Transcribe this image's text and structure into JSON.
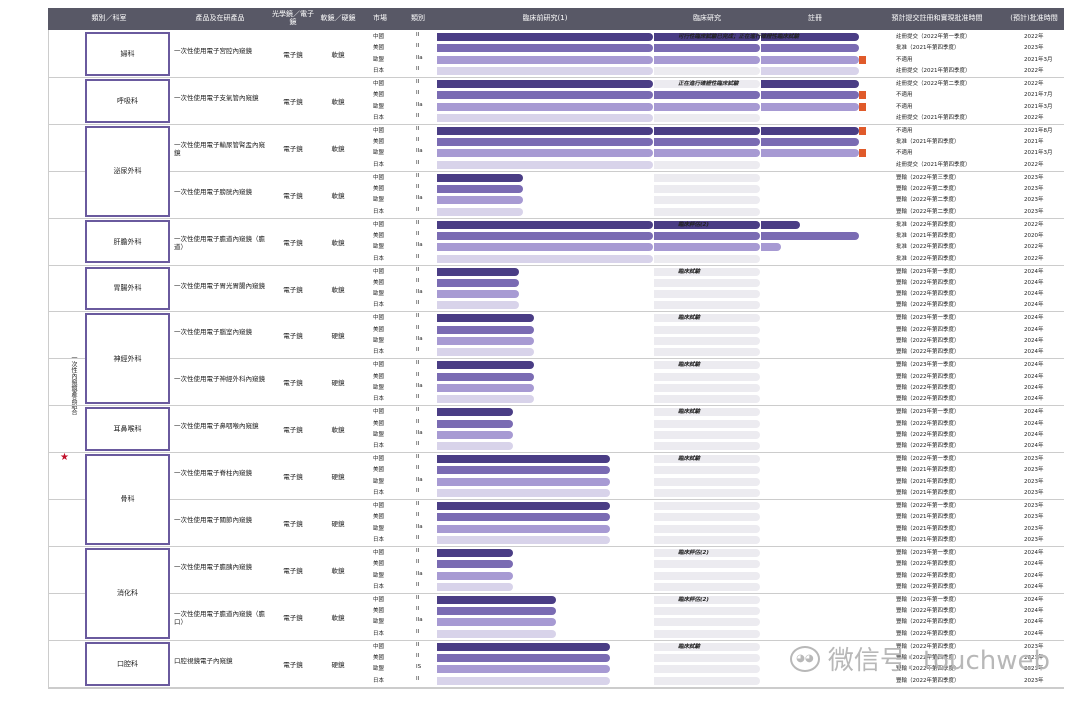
{
  "header": {
    "cols": [
      "類別／科室",
      "產品及在研產品",
      "光學鏡／電子鏡",
      "軟鏡／硬鏡",
      "市場",
      "類別",
      "臨床前研究(1)",
      "臨床研究",
      "註冊",
      "預計提交註冊和實現批准時間",
      "(預計)批准時間"
    ]
  },
  "side_label": "一次性內窺鏡產品組合",
  "stages": [
    "中國",
    "美國",
    "歐盟",
    "日本"
  ],
  "specialties": [
    {
      "name": "婦科",
      "products": [
        {
          "name": "一次性使用電子宮腔內窺鏡",
          "type": "電子鏡",
          "rigid": "軟鏡",
          "classes": [
            "II",
            "II",
            "IIa",
            "II"
          ],
          "pre": [
            1,
            1,
            1,
            1
          ],
          "clin": [
            1,
            1,
            1,
            0
          ],
          "reg": [
            1,
            1,
            1,
            1
          ],
          "marker": [
            false,
            false,
            true,
            false
          ],
          "timing": [
            "註冊提交（2022年第一季度）",
            "批准（2021年第四季度）",
            "不適用",
            "註冊提交（2021年第四季度）"
          ],
          "approval": [
            "2022年",
            "2023年",
            "2021年3月",
            "2022年"
          ],
          "note": "可行性臨床試驗已完成；正在進行確證性臨床試驗",
          "note_stage": "臨床研究"
        }
      ]
    },
    {
      "name": "呼吸科",
      "products": [
        {
          "name": "一次性使用電子支氣管內窺鏡",
          "type": "電子鏡",
          "rigid": "軟鏡",
          "classes": [
            "II",
            "II",
            "IIa",
            "II"
          ],
          "pre": [
            1,
            1,
            1,
            1
          ],
          "clin": [
            0,
            1,
            1,
            0
          ],
          "reg": [
            1,
            1,
            1,
            0
          ],
          "marker": [
            false,
            true,
            true,
            false
          ],
          "timing": [
            "註冊提交（2022年第二季度）",
            "不適用",
            "不適用",
            "註冊提交（2021年第四季度）"
          ],
          "approval": [
            "2022年",
            "2021年7月",
            "2021年3月",
            "2022年"
          ],
          "note": "正在進行確證性臨床試驗",
          "note_stage": "臨床研究"
        }
      ]
    },
    {
      "name": "泌尿外科",
      "products": [
        {
          "name": "一次性使用電子輸尿管腎盂內窺鏡",
          "type": "電子鏡",
          "rigid": "軟鏡",
          "classes": [
            "II",
            "II",
            "IIa",
            "II"
          ],
          "pre": [
            1,
            1,
            1,
            1
          ],
          "clin": [
            1,
            1,
            1,
            0
          ],
          "reg": [
            1,
            1,
            1,
            0
          ],
          "marker": [
            true,
            false,
            true,
            false
          ],
          "timing": [
            "不適用",
            "批准（2021年第四季度）",
            "不適用",
            "註冊提交（2021年第四季度）"
          ],
          "approval": [
            "2021年8月",
            "2021年",
            "2021年3月",
            "2022年"
          ]
        },
        {
          "name": "一次性使用電子膀胱內窺鏡",
          "type": "電子鏡",
          "rigid": "軟鏡",
          "classes": [
            "II",
            "II",
            "IIa",
            "II"
          ],
          "pre": [
            0.4,
            0.4,
            0.4,
            0.4
          ],
          "clin": [
            0,
            0,
            0,
            0
          ],
          "reg": [
            0,
            0,
            0,
            0
          ],
          "marker": [
            false,
            false,
            false,
            false
          ],
          "timing": [
            "豐輸（2022年第三季度）",
            "豐輸（2022年第二季度）",
            "豐輸（2022年第二季度）",
            "豐輸（2022年第二季度）"
          ],
          "approval": [
            "2023年",
            "2023年",
            "2023年",
            "2023年"
          ]
        }
      ]
    },
    {
      "name": "肝膽外科",
      "products": [
        {
          "name": "一次性使用電子膽道內窺鏡（膽道）",
          "type": "電子鏡",
          "rigid": "軟鏡",
          "classes": [
            "II",
            "II",
            "IIa",
            "II"
          ],
          "pre": [
            1,
            1,
            1,
            1
          ],
          "clin": [
            1,
            1,
            1,
            0
          ],
          "reg": [
            0.4,
            1,
            0.2,
            0
          ],
          "marker": [
            false,
            false,
            false,
            false
          ],
          "timing": [
            "批准（2022年第四季度）",
            "批准（2021年第四季度）",
            "批准（2022年第四季度）",
            "批准（2022年第四季度）"
          ],
          "approval": [
            "2022年",
            "2020年",
            "2022年",
            "2022年"
          ],
          "note": "臨床評估(2)",
          "note_stage": "臨床研究"
        }
      ]
    },
    {
      "name": "胃腸外科",
      "products": [
        {
          "name": "一次性使用電子胃光胃腸內窺鏡",
          "type": "電子鏡",
          "rigid": "軟鏡",
          "classes": [
            "II",
            "II",
            "IIa",
            "II"
          ],
          "pre": [
            0.38,
            0.38,
            0.38,
            0.38
          ],
          "clin": [
            0,
            0,
            0,
            0
          ],
          "reg": [
            0,
            0,
            0,
            0
          ],
          "marker": [
            false,
            false,
            false,
            false
          ],
          "timing": [
            "豐輸（2023年第一季度）",
            "豐輸（2022年第四季度）",
            "豐輸（2022年第四季度）",
            "豐輸（2022年第四季度）"
          ],
          "approval": [
            "2024年",
            "2024年",
            "2024年",
            "2024年"
          ],
          "note": "臨床試驗",
          "note_stage": "臨床研究"
        }
      ]
    },
    {
      "name": "神經外科",
      "products": [
        {
          "name": "一次性使用電子腦室內窺鏡",
          "type": "電子鏡",
          "rigid": "硬鏡",
          "classes": [
            "II",
            "II",
            "IIa",
            "II"
          ],
          "pre": [
            0.45,
            0.45,
            0.45,
            0.45
          ],
          "clin": [
            0,
            0,
            0,
            0
          ],
          "reg": [
            0,
            0,
            0,
            0
          ],
          "marker": [
            false,
            false,
            false,
            false
          ],
          "timing": [
            "豐輸（2023年第一季度）",
            "豐輸（2022年第四季度）",
            "豐輸（2022年第四季度）",
            "豐輸（2022年第四季度）"
          ],
          "approval": [
            "2024年",
            "2024年",
            "2024年",
            "2024年"
          ],
          "note": "臨床試驗",
          "note_stage": "臨床研究"
        },
        {
          "name": "一次性使用電子神經外科內窺鏡",
          "type": "電子鏡",
          "rigid": "硬鏡",
          "classes": [
            "II",
            "II",
            "IIa",
            "II"
          ],
          "pre": [
            0.45,
            0.45,
            0.45,
            0.45
          ],
          "clin": [
            0,
            0,
            0,
            0
          ],
          "reg": [
            0,
            0,
            0,
            0
          ],
          "marker": [
            false,
            false,
            false,
            false
          ],
          "timing": [
            "豐輸（2023年第一季度）",
            "豐輸（2022年第四季度）",
            "豐輸（2022年第四季度）",
            "豐輸（2022年第四季度）"
          ],
          "approval": [
            "2024年",
            "2024年",
            "2024年",
            "2024年"
          ],
          "note": "臨床試驗",
          "note_stage": "臨床研究"
        }
      ]
    },
    {
      "name": "耳鼻喉科",
      "products": [
        {
          "name": "一次性使用電子鼻咽喉內窺鏡",
          "type": "電子鏡",
          "rigid": "軟鏡",
          "classes": [
            "II",
            "II",
            "IIa",
            "II"
          ],
          "pre": [
            0.35,
            0.35,
            0.35,
            0.35
          ],
          "clin": [
            0,
            0,
            0,
            0
          ],
          "reg": [
            0,
            0,
            0,
            0
          ],
          "marker": [
            false,
            false,
            false,
            false
          ],
          "timing": [
            "豐輸（2023年第一季度）",
            "豐輸（2022年第四季度）",
            "豐輸（2022年第四季度）",
            "豐輸（2022年第四季度）"
          ],
          "approval": [
            "2024年",
            "2024年",
            "2024年",
            "2024年"
          ],
          "note": "臨床試驗",
          "note_stage": "臨床研究"
        }
      ]
    },
    {
      "name": "骨科",
      "products": [
        {
          "name": "一次性使用電子脊柱內窺鏡",
          "type": "電子鏡",
          "rigid": "硬鏡",
          "classes": [
            "II",
            "II",
            "IIa",
            "II"
          ],
          "pre": [
            0.8,
            0.8,
            0.8,
            0.8
          ],
          "clin": [
            0,
            0,
            0,
            0
          ],
          "reg": [
            0,
            0,
            0,
            0
          ],
          "marker": [
            false,
            false,
            false,
            false
          ],
          "timing": [
            "豐輸（2022年第一季度）",
            "豐輸（2021年第四季度）",
            "豐輸（2021年第四季度）",
            "豐輸（2021年第四季度）"
          ],
          "approval": [
            "2023年",
            "2023年",
            "2023年",
            "2023年"
          ],
          "note": "臨床試驗",
          "note_stage": "臨床研究"
        },
        {
          "name": "一次性使用電子關節內窺鏡",
          "type": "電子鏡",
          "rigid": "硬鏡",
          "classes": [
            "II",
            "II",
            "IIa",
            "II"
          ],
          "pre": [
            0.8,
            0.8,
            0.8,
            0.8
          ],
          "clin": [
            0,
            0,
            0,
            0
          ],
          "reg": [
            0,
            0,
            0,
            0
          ],
          "marker": [
            false,
            false,
            false,
            false
          ],
          "timing": [
            "豐輸（2022年第一季度）",
            "豐輸（2021年第四季度）",
            "豐輸（2021年第四季度）",
            "豐輸（2021年第四季度）"
          ],
          "approval": [
            "2023年",
            "2023年",
            "2023年",
            "2023年"
          ]
        }
      ]
    },
    {
      "name": "消化科",
      "products": [
        {
          "name": "一次性使用電子膽胰內窺鏡",
          "type": "電子鏡",
          "rigid": "軟鏡",
          "classes": [
            "II",
            "II",
            "IIa",
            "II"
          ],
          "pre": [
            0.35,
            0.35,
            0.35,
            0.35
          ],
          "clin": [
            0,
            0,
            0,
            0
          ],
          "reg": [
            0,
            0,
            0,
            0
          ],
          "marker": [
            false,
            false,
            false,
            false
          ],
          "timing": [
            "豐輸（2023年第一季度）",
            "豐輸（2022年第四季度）",
            "豐輸（2022年第四季度）",
            "豐輸（2022年第四季度）"
          ],
          "approval": [
            "2024年",
            "2024年",
            "2024年",
            "2024年"
          ],
          "note": "臨床評估(2)",
          "note_stage": "臨床研究"
        },
        {
          "name": "一次性使用電子膽道內窺鏡（膽口）",
          "type": "電子鏡",
          "rigid": "軟鏡",
          "classes": [
            "II",
            "II",
            "IIa",
            "II"
          ],
          "pre": [
            0.55,
            0.55,
            0.55,
            0.55
          ],
          "clin": [
            0,
            0,
            0,
            0
          ],
          "reg": [
            0,
            0,
            0,
            0
          ],
          "marker": [
            false,
            false,
            false,
            false
          ],
          "timing": [
            "豐輸（2023年第一季度）",
            "豐輸（2022年第四季度）",
            "豐輸（2022年第四季度）",
            "豐輸（2022年第四季度）"
          ],
          "approval": [
            "2024年",
            "2024年",
            "2024年",
            "2024年"
          ],
          "note": "臨床評估(2)",
          "note_stage": "臨床研究"
        }
      ]
    },
    {
      "name": "口腔科",
      "products": [
        {
          "name": "口腔視鏡電子內窺鏡",
          "type": "電子鏡",
          "rigid": "硬鏡",
          "classes": [
            "II",
            "II",
            "IS",
            "II"
          ],
          "pre": [
            0.8,
            0.8,
            0.8,
            0.8
          ],
          "clin": [
            0,
            0,
            0,
            0
          ],
          "reg": [
            0,
            0,
            0,
            0
          ],
          "marker": [
            false,
            false,
            false,
            false
          ],
          "timing": [
            "豐輸（2022年第四季度）",
            "豐輸（2022年第四季度）",
            "豐輸（2022年第四季度）",
            "豐輸（2022年第四季度）"
          ],
          "approval": [
            "2023年",
            "2023年",
            "2023年",
            "2023年"
          ],
          "note": "臨床試驗",
          "note_stage": "臨床研究"
        }
      ]
    }
  ],
  "watermark": {
    "text": "微信号: touchweb"
  }
}
